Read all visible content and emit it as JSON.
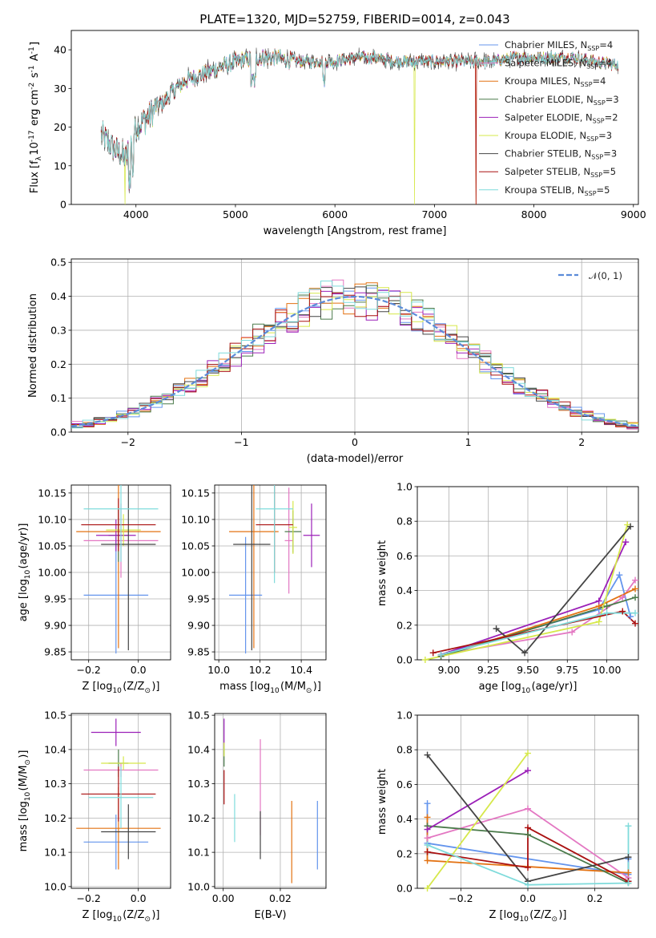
{
  "figure": {
    "title": "PLATE=1320, MJD=52759, FIBERID=0014, z=0.043"
  },
  "model_colors": {
    "Chabrier MILES": "#6495ED",
    "Salpeter MILES": "#E377C2",
    "Kroupa MILES": "#E37212",
    "Chabrier ELODIE": "#4A7A4A",
    "Salpeter ELODIE": "#9B20B8",
    "Kroupa ELODIE": "#D6E84A",
    "Chabrier STELIB": "#444444",
    "Salpeter STELIB": "#AA1111",
    "Kroupa STELIB": "#7FDBDB"
  },
  "chart_data": [
    {
      "id": "spectrum",
      "type": "line",
      "title": "PLATE=1320, MJD=52759, FIBERID=0014, z=0.043",
      "xlabel": "wavelength [Angstrom, rest frame]",
      "ylabel": "Flux [f$_\\lambda$10$^{-17}$ erg cm$^{-2}$ s$^{-1}$ A$^{-1}$]",
      "xlim": [
        3350,
        9050
      ],
      "ylim": [
        0,
        45
      ],
      "xticks": [
        4000,
        5000,
        6000,
        7000,
        8000,
        9000
      ],
      "yticks": [
        0,
        10,
        20,
        30,
        40
      ],
      "grid": false,
      "legend_position": "upper-right",
      "continuum_x": [
        3650,
        3800,
        3900,
        4000,
        4100,
        4200,
        4300,
        4400,
        4500,
        4600,
        4800,
        5000,
        5200,
        5400,
        5600,
        5800,
        6000,
        6200,
        6400,
        6600,
        6800,
        7000,
        7200,
        7400,
        7600,
        7800,
        8000,
        8200,
        8400,
        8600,
        8850
      ],
      "continuum_y": [
        18,
        14,
        12,
        20,
        22,
        25,
        27,
        30,
        32,
        33,
        35,
        37,
        38,
        38,
        37,
        37,
        37,
        38,
        38,
        37,
        37,
        37,
        37,
        37,
        37,
        38,
        38,
        38,
        38,
        37,
        36
      ],
      "series": [
        {
          "name": "Chabrier MILES, N$_{SSP}$=4",
          "label_main": "Chabrier MILES, N",
          "n_ssp": "4",
          "color": "#6495ED",
          "drops": []
        },
        {
          "name": "Salpeter MILES, N$_{SSP}$=4",
          "label_main": "Salpeter MILES, N",
          "n_ssp": "4",
          "color": "#E377C2",
          "drops": []
        },
        {
          "name": "Kroupa MILES, N$_{SSP}$=4",
          "label_main": "Kroupa MILES, N",
          "n_ssp": "4",
          "color": "#E37212",
          "drops": [
            7420
          ]
        },
        {
          "name": "Chabrier ELODIE, N$_{SSP}$=3",
          "label_main": "Chabrier ELODIE, N",
          "n_ssp": "3",
          "color": "#4A7A4A",
          "drops": []
        },
        {
          "name": "Salpeter ELODIE, N$_{SSP}$=2",
          "label_main": "Salpeter ELODIE, N",
          "n_ssp": "2",
          "color": "#9B20B8",
          "drops": []
        },
        {
          "name": "Kroupa ELODIE, N$_{SSP}$=3",
          "label_main": "Kroupa ELODIE, N",
          "n_ssp": "3",
          "color": "#D6E84A",
          "drops": [
            3890,
            6800
          ]
        },
        {
          "name": "Chabrier STELIB, N$_{SSP}$=3",
          "label_main": "Chabrier STELIB, N",
          "n_ssp": "3",
          "color": "#444444",
          "drops": []
        },
        {
          "name": "Salpeter STELIB, N$_{SSP}$=5",
          "label_main": "Salpeter STELIB, N",
          "n_ssp": "5",
          "color": "#AA1111",
          "drops": [
            7420
          ]
        },
        {
          "name": "Kroupa STELIB, N$_{SSP}$=5",
          "label_main": "Kroupa STELIB, N",
          "n_ssp": "5",
          "color": "#7FDBDB",
          "drops": []
        }
      ]
    },
    {
      "id": "residuals",
      "type": "histogram",
      "xlabel": "(data-model)/error",
      "ylabel": "Normed distribution",
      "xlim": [
        -2.5,
        2.5
      ],
      "ylim": [
        0,
        0.51
      ],
      "xticks": [
        -2,
        -1,
        0,
        1,
        2
      ],
      "yticks": [
        0.0,
        0.1,
        0.2,
        0.3,
        0.4,
        0.5
      ],
      "grid": true,
      "legend_position": "upper-right",
      "reference_curve": {
        "name": "$\\mathcal{N}(0,1)$",
        "label": "𝒩(0, 1)",
        "color": "#5B8BD9",
        "style": "dashed"
      },
      "bin_width": 0.1,
      "series_colors": [
        "#6495ED",
        "#E377C2",
        "#E37212",
        "#4A7A4A",
        "#9B20B8",
        "#D6E84A",
        "#444444",
        "#AA1111",
        "#7FDBDB"
      ]
    },
    {
      "id": "age-vs-Z",
      "type": "errorbar",
      "xlabel": "Z [log$_{10}$(Z/Z$_\\odot$)]",
      "ylabel": "age  [log$_{10}$(age/yr)]",
      "xlim": [
        -0.27,
        0.13
      ],
      "ylim": [
        9.835,
        10.165
      ],
      "xticks": [
        -0.2,
        0.0
      ],
      "yticks": [
        9.85,
        9.9,
        9.95,
        10.0,
        10.05,
        10.1,
        10.15
      ],
      "grid": true,
      "points": [
        {
          "model": "Chabrier MILES",
          "x": -0.09,
          "xerr": 0.13,
          "y": 9.957,
          "yerr": 0.11
        },
        {
          "model": "Salpeter MILES",
          "x": -0.07,
          "xerr": 0.15,
          "y": 10.06,
          "yerr": 0.07
        },
        {
          "model": "Kroupa MILES",
          "x": -0.08,
          "xerr": 0.17,
          "y": 10.077,
          "yerr": 0.22
        },
        {
          "model": "Chabrier ELODIE",
          "x": -0.08,
          "xerr": 0.04,
          "y": 10.07,
          "yerr": 0.05
        },
        {
          "model": "Salpeter ELODIE",
          "x": -0.09,
          "xerr": 0.08,
          "y": 10.07,
          "yerr": 0.03
        },
        {
          "model": "Kroupa ELODIE",
          "x": -0.06,
          "xerr": 0.07,
          "y": 10.08,
          "yerr": 0.03
        },
        {
          "model": "Chabrier STELIB",
          "x": -0.04,
          "xerr": 0.11,
          "y": 10.053,
          "yerr": 0.2
        },
        {
          "model": "Salpeter STELIB",
          "x": -0.08,
          "xerr": 0.15,
          "y": 10.09,
          "yerr": 0.05
        },
        {
          "model": "Kroupa STELIB",
          "x": -0.07,
          "xerr": 0.15,
          "y": 10.12,
          "yerr": 0.1
        }
      ]
    },
    {
      "id": "age-vs-mass",
      "type": "errorbar",
      "xlabel": "mass [log$_{10}$(M/M$_\\odot$)]",
      "ylabel": "",
      "xlim": [
        9.98,
        10.52
      ],
      "ylim": [
        9.835,
        10.165
      ],
      "xticks": [
        10.0,
        10.2,
        10.4
      ],
      "yticks": [
        9.85,
        9.9,
        9.95,
        10.0,
        10.05,
        10.1,
        10.15
      ],
      "grid": true,
      "points": [
        {
          "model": "Chabrier MILES",
          "x": 10.13,
          "xerr": 0.08,
          "y": 9.957,
          "yerr": 0.11
        },
        {
          "model": "Salpeter MILES",
          "x": 10.34,
          "xerr": 0.02,
          "y": 10.06,
          "yerr": 0.1
        },
        {
          "model": "Kroupa MILES",
          "x": 10.17,
          "xerr": 0.12,
          "y": 10.077,
          "yerr": 0.22
        },
        {
          "model": "Chabrier ELODIE",
          "x": 10.36,
          "xerr": 0.04,
          "y": 10.077,
          "yerr": 0.04
        },
        {
          "model": "Salpeter ELODIE",
          "x": 10.45,
          "xerr": 0.04,
          "y": 10.07,
          "yerr": 0.06
        },
        {
          "model": "Kroupa ELODIE",
          "x": 10.36,
          "xerr": 0.02,
          "y": 10.085,
          "yerr": 0.05
        },
        {
          "model": "Chabrier STELIB",
          "x": 10.16,
          "xerr": 0.09,
          "y": 10.053,
          "yerr": 0.2
        },
        {
          "model": "Salpeter STELIB",
          "x": 10.27,
          "xerr": 0.09,
          "y": 10.09,
          "yerr": 0.09
        },
        {
          "model": "Kroupa STELIB",
          "x": 10.27,
          "xerr": 0.09,
          "y": 10.12,
          "yerr": 0.14
        }
      ]
    },
    {
      "id": "weight-vs-age",
      "type": "line",
      "xlabel": "age  [log$_{10}$(age/yr)]",
      "ylabel": "mass weight",
      "xlim": [
        8.8,
        10.2
      ],
      "ylim": [
        0,
        1
      ],
      "xticks": [
        9.0,
        9.25,
        9.5,
        9.75,
        10.0
      ],
      "yticks": [
        0.0,
        0.2,
        0.4,
        0.6,
        0.8,
        1.0
      ],
      "grid": true,
      "series": [
        {
          "model": "Chabrier MILES",
          "x": [
            8.95,
            9.95,
            10.08,
            10.15
          ],
          "y": [
            0.03,
            0.29,
            0.49,
            0.25
          ]
        },
        {
          "model": "Salpeter MILES",
          "x": [
            8.95,
            9.78,
            10.1,
            10.18
          ],
          "y": [
            0.03,
            0.16,
            0.36,
            0.46
          ]
        },
        {
          "model": "Kroupa MILES",
          "x": [
            8.95,
            9.95,
            10.18
          ],
          "y": [
            0.02,
            0.31,
            0.41
          ]
        },
        {
          "model": "Chabrier ELODIE",
          "x": [
            8.95,
            10.0,
            10.18
          ],
          "y": [
            0.02,
            0.31,
            0.36
          ]
        },
        {
          "model": "Salpeter ELODIE",
          "x": [
            8.95,
            9.95,
            10.12
          ],
          "y": [
            0.03,
            0.34,
            0.68
          ]
        },
        {
          "model": "Kroupa ELODIE",
          "x": [
            8.85,
            9.95,
            10.13
          ],
          "y": [
            0.0,
            0.22,
            0.78
          ]
        },
        {
          "model": "Chabrier STELIB",
          "x": [
            9.3,
            9.48,
            10.15
          ],
          "y": [
            0.18,
            0.04,
            0.77
          ]
        },
        {
          "model": "Salpeter STELIB",
          "x": [
            8.9,
            10.1,
            10.18
          ],
          "y": [
            0.04,
            0.28,
            0.21
          ]
        },
        {
          "model": "Kroupa STELIB",
          "x": [
            8.95,
            10.0,
            10.18
          ],
          "y": [
            0.03,
            0.27,
            0.27
          ]
        }
      ]
    },
    {
      "id": "mass-vs-Z",
      "type": "errorbar",
      "xlabel": "Z [log$_{10}$(Z/Z$_\\odot$)]",
      "ylabel": "mass [log$_{10}$(M/M$_\\odot$)]",
      "xlim": [
        -0.27,
        0.13
      ],
      "ylim": [
        9.995,
        10.505
      ],
      "xticks": [
        -0.2,
        0.0
      ],
      "yticks": [
        10.0,
        10.1,
        10.2,
        10.3,
        10.4,
        10.5
      ],
      "grid": true,
      "points": [
        {
          "model": "Chabrier MILES",
          "x": -0.09,
          "xerr": 0.13,
          "y": 10.13,
          "yerr": 0.08
        },
        {
          "model": "Salpeter MILES",
          "x": -0.07,
          "xerr": 0.15,
          "y": 10.34,
          "yerr": 0.02
        },
        {
          "model": "Kroupa MILES",
          "x": -0.08,
          "xerr": 0.17,
          "y": 10.17,
          "yerr": 0.12
        },
        {
          "model": "Chabrier ELODIE",
          "x": -0.08,
          "xerr": 0.04,
          "y": 10.36,
          "yerr": 0.04
        },
        {
          "model": "Salpeter ELODIE",
          "x": -0.09,
          "xerr": 0.1,
          "y": 10.45,
          "yerr": 0.04
        },
        {
          "model": "Kroupa ELODIE",
          "x": -0.06,
          "xerr": 0.09,
          "y": 10.36,
          "yerr": 0.02
        },
        {
          "model": "Chabrier STELIB",
          "x": -0.04,
          "xerr": 0.11,
          "y": 10.16,
          "yerr": 0.08
        },
        {
          "model": "Salpeter STELIB",
          "x": -0.08,
          "xerr": 0.15,
          "y": 10.27,
          "yerr": 0.08
        },
        {
          "model": "Kroupa STELIB",
          "x": -0.07,
          "xerr": 0.13,
          "y": 10.26,
          "yerr": 0.09
        }
      ]
    },
    {
      "id": "mass-vs-EBV",
      "type": "errorbar",
      "xlabel": "E(B-V)",
      "ylabel": "",
      "xlim": [
        -0.003,
        0.036
      ],
      "ylim": [
        9.995,
        10.505
      ],
      "xticks": [
        0.0,
        0.02
      ],
      "yticks": [
        10.0,
        10.1,
        10.2,
        10.3,
        10.4,
        10.5
      ],
      "grid": true,
      "points": [
        {
          "model": "Chabrier MILES",
          "x": 0.033,
          "xerr": 0.0,
          "y": 10.15,
          "yerr": 0.1
        },
        {
          "model": "Salpeter MILES",
          "x": 0.013,
          "xerr": 0.0,
          "y": 10.29,
          "yerr": 0.14
        },
        {
          "model": "Kroupa MILES",
          "x": 0.024,
          "xerr": 0.0,
          "y": 10.13,
          "yerr": 0.12
        },
        {
          "model": "Chabrier ELODIE",
          "x": 0.0003,
          "xerr": 0.0,
          "y": 10.38,
          "yerr": 0.03
        },
        {
          "model": "Salpeter ELODIE",
          "x": 0.0003,
          "xerr": 0.0,
          "y": 10.45,
          "yerr": 0.04
        },
        {
          "model": "Kroupa ELODIE",
          "x": 0.0003,
          "xerr": 0.0,
          "y": 10.4,
          "yerr": 0.02
        },
        {
          "model": "Chabrier STELIB",
          "x": 0.013,
          "xerr": 0.0,
          "y": 10.15,
          "yerr": 0.07
        },
        {
          "model": "Salpeter STELIB",
          "x": 0.0003,
          "xerr": 0.0,
          "y": 10.29,
          "yerr": 0.05
        },
        {
          "model": "Kroupa STELIB",
          "x": 0.004,
          "xerr": 0.0,
          "y": 10.2,
          "yerr": 0.07
        }
      ]
    },
    {
      "id": "weight-vs-Z",
      "type": "line",
      "xlabel": "Z [log$_{10}$(Z/Z$_\\odot$)]",
      "ylabel": "mass weight",
      "xlim": [
        -0.33,
        0.33
      ],
      "ylim": [
        0,
        1
      ],
      "xticks": [
        -0.2,
        0.0,
        0.2
      ],
      "yticks": [
        0.0,
        0.2,
        0.4,
        0.6,
        0.8,
        1.0
      ],
      "grid": true,
      "series": [
        {
          "model": "Chabrier MILES",
          "x": [
            -0.3,
            -0.3,
            0.3,
            0.3
          ],
          "y": [
            0.49,
            0.26,
            0.08,
            0.17
          ]
        },
        {
          "model": "Salpeter MILES",
          "x": [
            -0.3,
            0.0,
            0.3
          ],
          "y": [
            0.29,
            0.46,
            0.06
          ]
        },
        {
          "model": "Kroupa MILES",
          "x": [
            -0.3,
            -0.3,
            0.3
          ],
          "y": [
            0.41,
            0.16,
            0.09
          ]
        },
        {
          "model": "Chabrier ELODIE",
          "x": [
            -0.3,
            0.0,
            0.3
          ],
          "y": [
            0.36,
            0.31,
            0.03
          ]
        },
        {
          "model": "Salpeter ELODIE",
          "x": [
            -0.3,
            0.0
          ],
          "y": [
            0.34,
            0.68
          ]
        },
        {
          "model": "Kroupa ELODIE",
          "x": [
            -0.3,
            0.0
          ],
          "y": [
            0.0,
            0.78
          ]
        },
        {
          "model": "Chabrier STELIB",
          "x": [
            -0.3,
            0.0,
            0.3,
            0.3
          ],
          "y": [
            0.77,
            0.04,
            0.18,
            0.04
          ]
        },
        {
          "model": "Salpeter STELIB",
          "x": [
            -0.3,
            0.0,
            0.0,
            0.3
          ],
          "y": [
            0.21,
            0.12,
            0.35,
            0.04
          ]
        },
        {
          "model": "Kroupa STELIB",
          "x": [
            -0.3,
            0.0,
            0.3,
            0.3
          ],
          "y": [
            0.25,
            0.02,
            0.03,
            0.36
          ]
        }
      ]
    }
  ]
}
